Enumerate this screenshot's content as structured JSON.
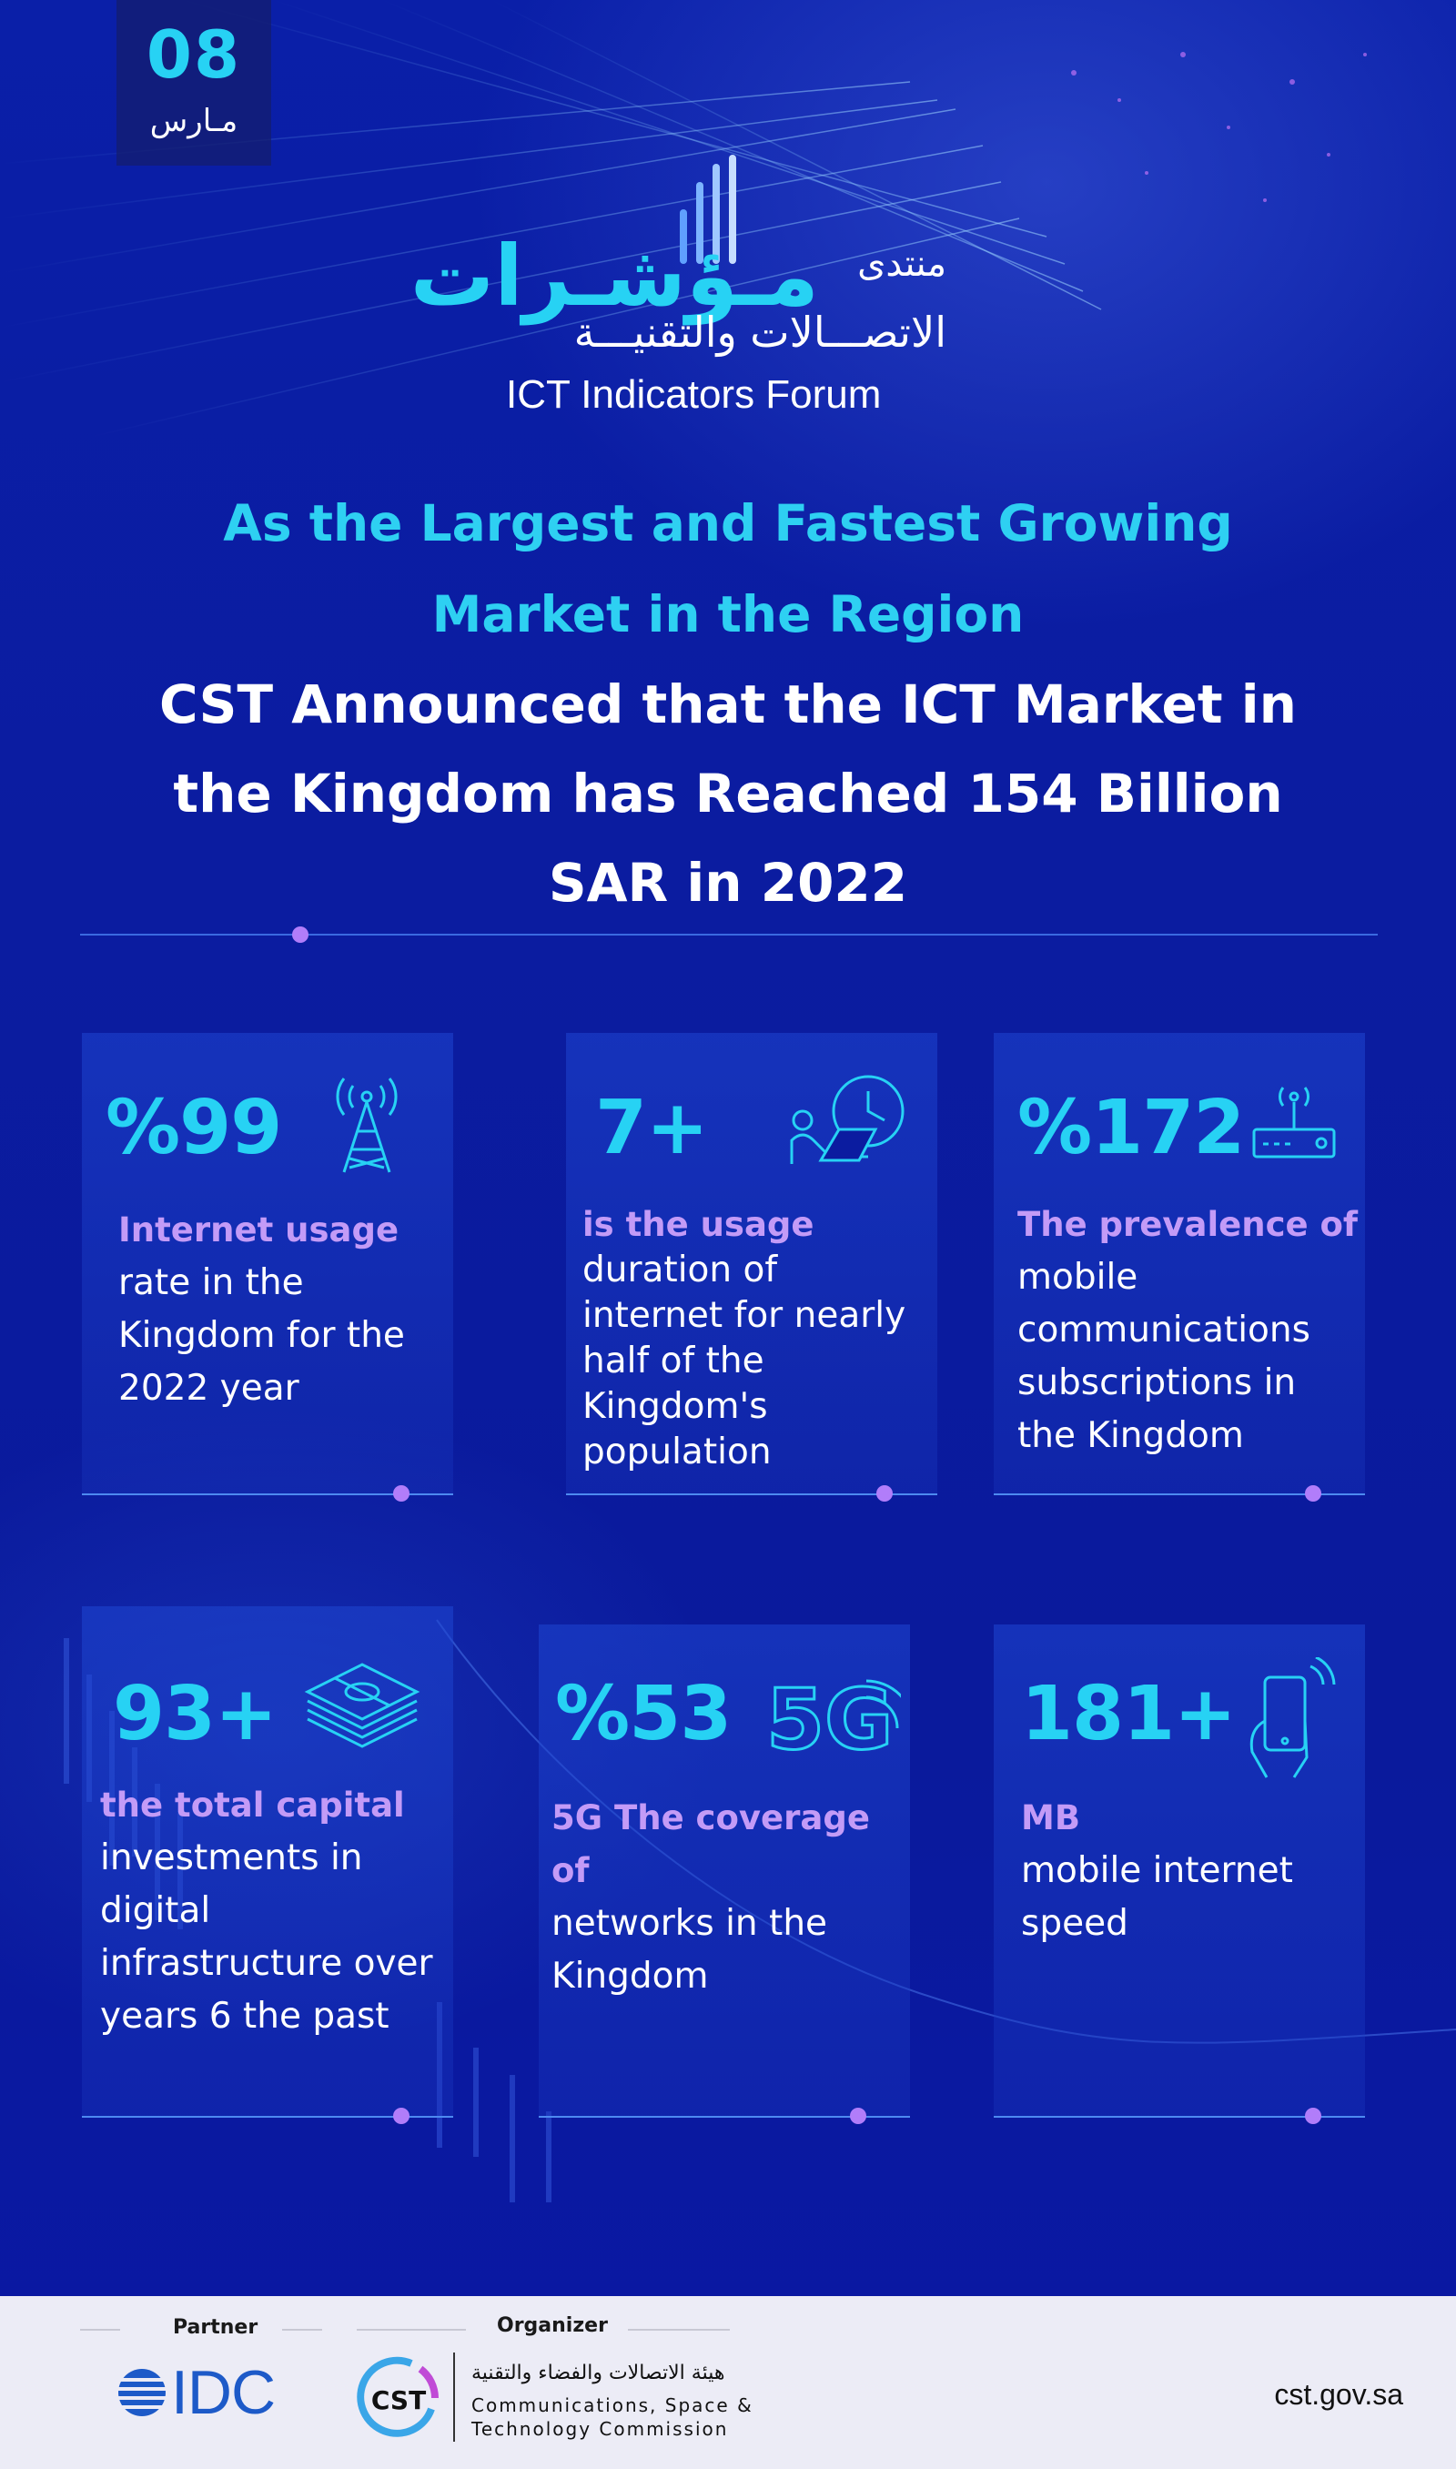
{
  "date": {
    "day": "08",
    "month": "مـارس"
  },
  "forum_logo": {
    "arabic_prefix": "منتدى",
    "arabic_main": "مـؤشـرات",
    "arabic_line2": "الاتصـــالات والتقنيـــة",
    "english": "ICT Indicators Forum"
  },
  "headline": {
    "line1": "As the Largest and Fastest Growing",
    "line2": "Market in the Region",
    "line3": "CST Announced that the ICT Market in",
    "line4": "the Kingdom has Reached 154 Billion",
    "line5": "SAR in 2022"
  },
  "cards": [
    {
      "stat": "%99",
      "icon": "cell-tower-icon",
      "highlight": "Internet usage",
      "lines": [
        "rate in the",
        "Kingdom for the",
        "2022 year"
      ]
    },
    {
      "stat": "7+",
      "icon": "person-laptop-clock-icon",
      "highlight": "is the usage",
      "lines": [
        "duration of",
        "internet for nearly",
        "half of the",
        "Kingdom's",
        "population"
      ]
    },
    {
      "stat": "%172",
      "icon": "router-icon",
      "highlight": "The prevalence of",
      "lines": [
        "mobile",
        "communications",
        "subscriptions in",
        "the Kingdom"
      ]
    },
    {
      "stat": "93+",
      "icon": "money-stack-icon",
      "highlight": "the total capital",
      "lines": [
        "investments in",
        "digital",
        "infrastructure over",
        "years 6 the past"
      ]
    },
    {
      "stat": "%53",
      "icon": "5g-icon",
      "icon_text": "5G",
      "highlight": "5G The coverage of",
      "lines": [
        "networks in the",
        "Kingdom"
      ]
    },
    {
      "stat": "181+",
      "icon": "smartphone-hand-icon",
      "highlight": "MB",
      "lines": [
        "mobile internet",
        "speed"
      ]
    }
  ],
  "footer": {
    "partner_label": "Partner",
    "organizer_label": "Organizer",
    "idc_text": "IDC",
    "cst_mark_text": "CST",
    "cst_arabic": "هيئة الاتصالات والفضاء والتقنية",
    "cst_english_line1": "Communications, Space &",
    "cst_english_line2": "Technology Commission",
    "url": "cst.gov.sa"
  },
  "colors": {
    "accent_cyan": "#27d2f4",
    "accent_purple": "#b17dfa",
    "background": "#0b1ca0"
  }
}
